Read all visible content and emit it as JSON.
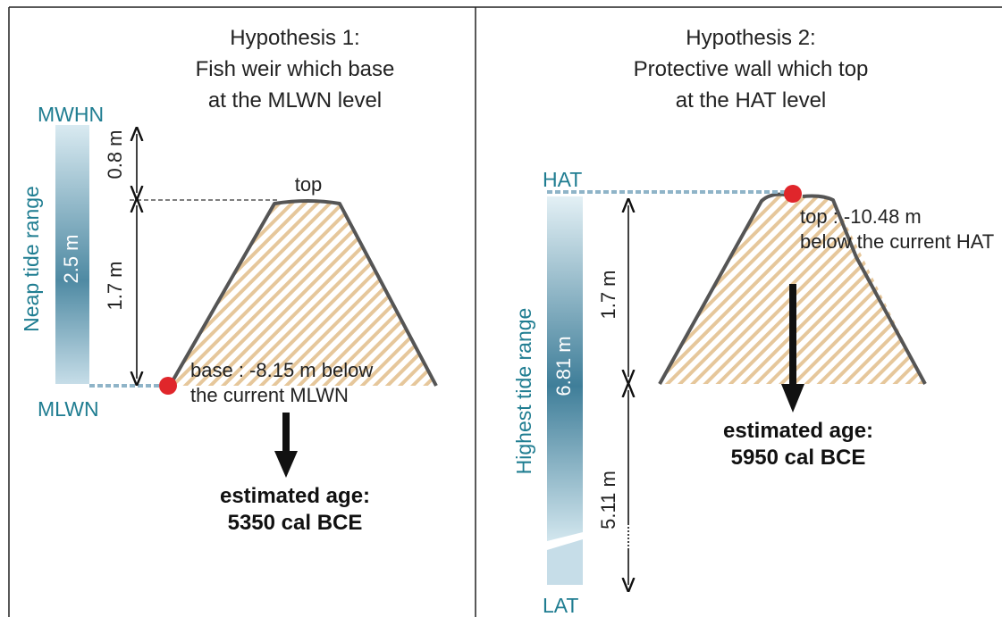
{
  "panels": [
    {
      "title": [
        "Hypothesis 1:",
        "Fish weir which base",
        "at the MLWN level"
      ],
      "upper_level": "MWHN",
      "lower_level": "MLWN",
      "range_label": "Neap tide range",
      "range_value": "2.5 m",
      "measures": [
        "0.8 m",
        "1.7 m"
      ],
      "point_label": "top",
      "note": [
        "base : -8.15 m below",
        "the current MLWN"
      ],
      "age": [
        "estimated age:",
        "5350 cal BCE"
      ]
    },
    {
      "title": [
        "Hypothesis 2:",
        "Protective wall which top",
        "at the HAT level"
      ],
      "upper_level": "HAT",
      "lower_level": "LAT",
      "range_label": "Highest tide range",
      "range_value": "6.81 m",
      "measures": [
        "1.7 m",
        "5.11 m"
      ],
      "note": [
        "top : -10.48 m",
        "below the current HAT"
      ],
      "age": [
        "estimated age:",
        "5950 cal BCE"
      ]
    }
  ]
}
